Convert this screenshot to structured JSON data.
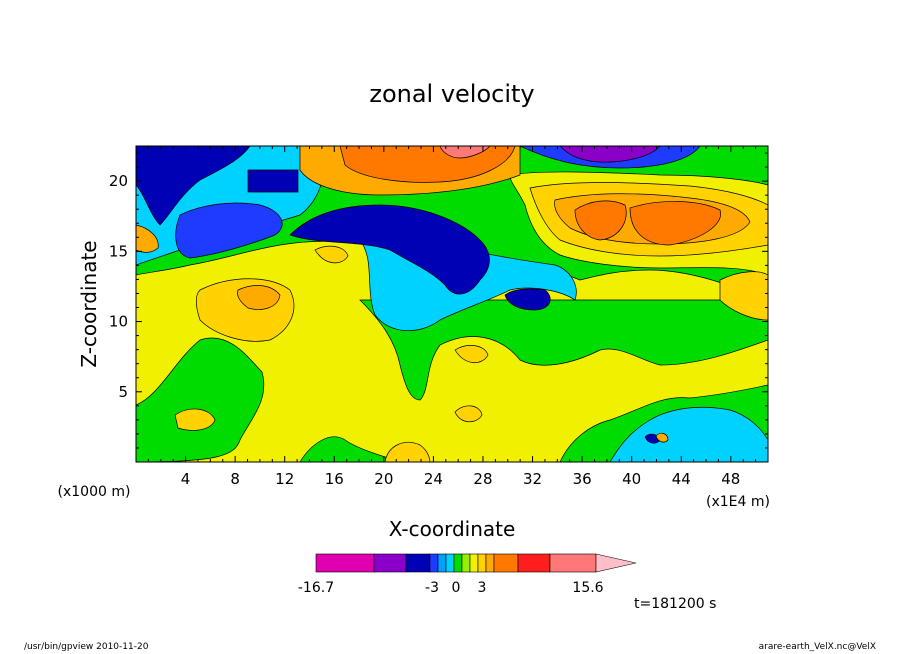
{
  "chart_data": {
    "type": "heatmap",
    "title": "zonal velocity",
    "xlabel": "X-coordinate",
    "ylabel": "Z-coordinate",
    "x_unit": "(x1E4 m)",
    "z_unit": "(x1000 m)",
    "x_ticks": [
      "4",
      "8",
      "12",
      "16",
      "20",
      "24",
      "28",
      "32",
      "36",
      "40",
      "44",
      "48"
    ],
    "y_ticks": [
      "5",
      "10",
      "15",
      "20"
    ],
    "xlim": [
      0,
      51
    ],
    "ylim": [
      0,
      22.5
    ],
    "colorbar": {
      "labels": [
        "-16.7",
        "-3",
        "0",
        "3",
        "15.6"
      ],
      "range": [
        -16.7,
        15.6
      ],
      "colors": [
        "#e000b0",
        "#8a00c8",
        "#0000b4",
        "#1e3cff",
        "#00a0ff",
        "#00d2ff",
        "#00dc00",
        "#96f000",
        "#f0f000",
        "#ffd200",
        "#ffaa00",
        "#ff7800",
        "#ff1e1e",
        "#ff7878",
        "#ffbec8"
      ]
    },
    "time_label": "t=181200 s"
  },
  "footer": {
    "left": "/usr/bin/gpview  2010-11-20",
    "right": "arare-earth_VelX.nc@VelX"
  }
}
